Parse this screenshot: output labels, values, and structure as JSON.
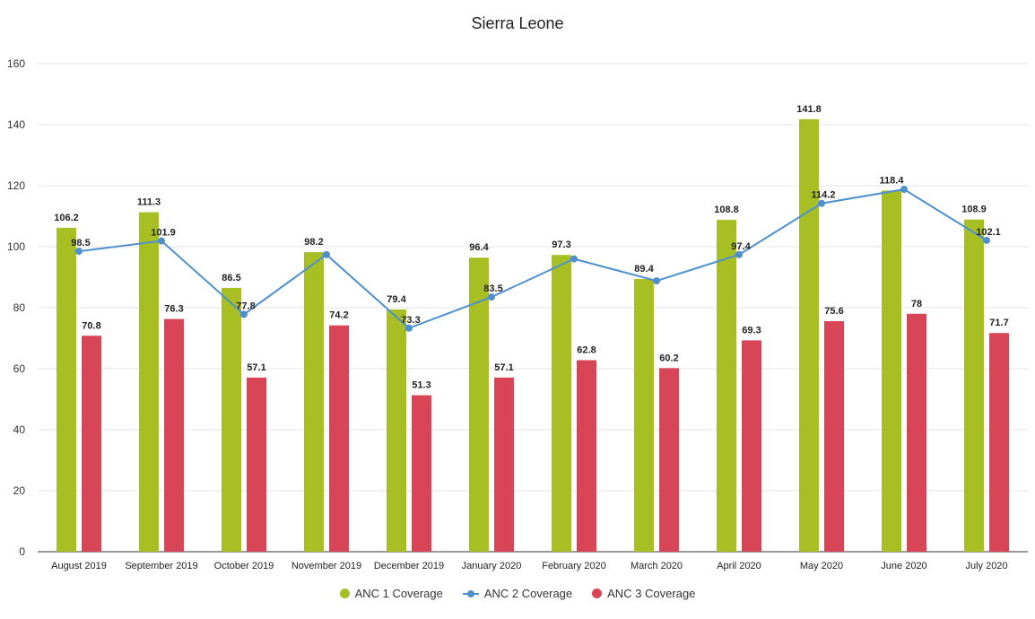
{
  "chart_data": {
    "type": "bar",
    "title": "Sierra Leone",
    "categories": [
      "August 2019",
      "September 2019",
      "October 2019",
      "November 2019",
      "December 2019",
      "January 2020",
      "February 2020",
      "March 2020",
      "April 2020",
      "May 2020",
      "June 2020",
      "July 2020"
    ],
    "series": [
      {
        "name": "ANC 1 Coverage",
        "type": "bar",
        "color": "#a8bf24",
        "values": [
          106.2,
          111.3,
          86.5,
          98.2,
          79.4,
          96.4,
          97.3,
          89.4,
          108.8,
          141.8,
          118.4,
          108.9
        ]
      },
      {
        "name": "ANC 2 Coverage",
        "type": "line",
        "color": "#4f8fcd",
        "values": [
          98.5,
          101.9,
          77.8,
          97.4,
          73.3,
          83.5,
          96.0,
          88.8,
          97.4,
          114.2,
          118.8,
          102.1
        ]
      },
      {
        "name": "ANC 3 Coverage",
        "type": "bar",
        "color": "#d84557",
        "values": [
          70.8,
          76.3,
          57.1,
          74.2,
          51.3,
          57.1,
          62.8,
          60.2,
          69.3,
          75.6,
          78,
          71.7
        ]
      }
    ],
    "data_labels": {
      "ANC 1 Coverage": [
        "106.2",
        "111.3",
        "86.5",
        "98.2",
        "79.4",
        "96.4",
        "97.3",
        "89.4",
        "108.8",
        "141.8",
        "118.4",
        "108.9"
      ],
      "ANC 2 Coverage": [
        "98.5",
        "101.9",
        "77.8",
        "",
        "73.3",
        "83.5",
        "",
        "",
        "97.4",
        "114.2",
        "",
        "102.1"
      ],
      "ANC 3 Coverage": [
        "70.8",
        "76.3",
        "57.1",
        "74.2",
        "51.3",
        "57.1",
        "62.8",
        "60.2",
        "69.3",
        "75.6",
        "78",
        "71.7"
      ]
    },
    "ylim": [
      0,
      160
    ],
    "yticks": [
      "0",
      "20",
      "40",
      "60",
      "80",
      "100",
      "120",
      "140",
      "160"
    ],
    "grid": true,
    "legend_position": "bottom"
  }
}
